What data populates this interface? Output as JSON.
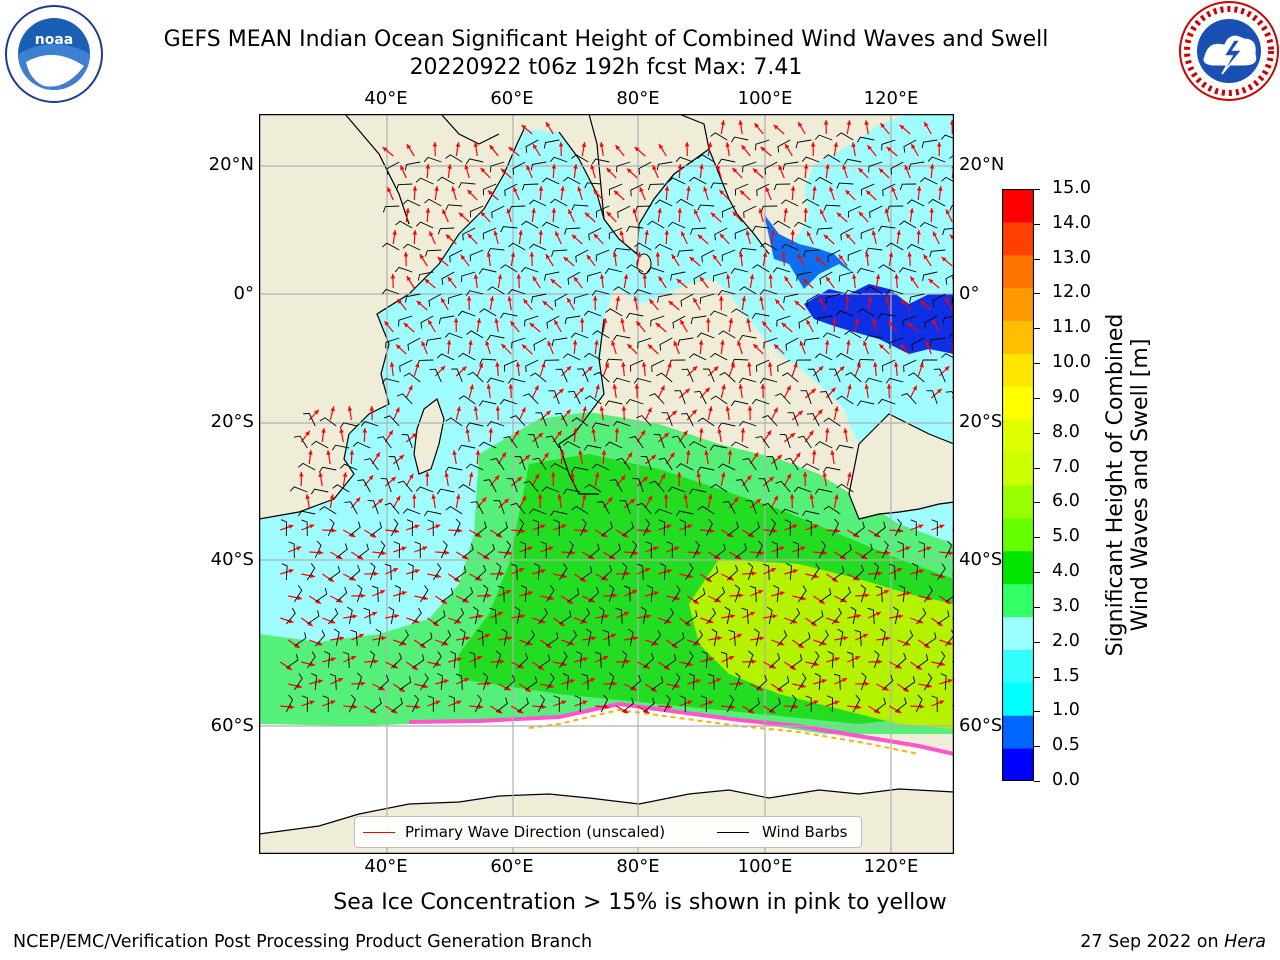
{
  "header": {
    "title_line1": "GEFS MEAN Indian Ocean Significant Height of Combined Wind Waves and Swell",
    "title_line2": "20220922 t06z 192h fcst   Max: 7.41"
  },
  "logos": {
    "left": "noaa-logo",
    "right": "nws-logo"
  },
  "map": {
    "lon_ticks": [
      "40°E",
      "60°E",
      "80°E",
      "100°E",
      "120°E"
    ],
    "lat_ticks_left": [
      "20°N",
      "0°",
      "20°S",
      "40°S",
      "60°S"
    ],
    "lat_ticks_right": [
      "20°N",
      "0°",
      "20°S",
      "40°S",
      "60°S"
    ]
  },
  "colorbar": {
    "label_line1": "Significant Height of Combined",
    "label_line2": "Wind Waves and Swell [m]",
    "ticks": [
      "15.0",
      "14.0",
      "13.0",
      "12.0",
      "11.0",
      "10.0",
      "9.0",
      "8.0",
      "7.0",
      "6.0",
      "5.0",
      "4.0",
      "3.0",
      "2.0",
      "1.5",
      "1.0",
      "0.5",
      "0.0"
    ],
    "colors_bottom_to_top": [
      "#0000ff",
      "#0066ff",
      "#00ffff",
      "#33ffff",
      "#99ffff",
      "#33ff66",
      "#00e600",
      "#66ff00",
      "#99ff00",
      "#ccff00",
      "#ddff00",
      "#ffff00",
      "#ffe600",
      "#ffbf00",
      "#ff9900",
      "#ff7300",
      "#ff4000",
      "#ff0000"
    ]
  },
  "legend": {
    "item1": "Primary Wave Direction (unscaled)",
    "item2": "Wind Barbs",
    "item1_color": "#ff0000",
    "item2_color": "#000000"
  },
  "caption": "Sea Ice Concentration > 15% is shown in pink to yellow",
  "footer": {
    "left": "NCEP/EMC/Verification Post Processing Product Generation Branch",
    "right_date": "27 Sep 2022 on ",
    "right_host": "Hera"
  }
}
